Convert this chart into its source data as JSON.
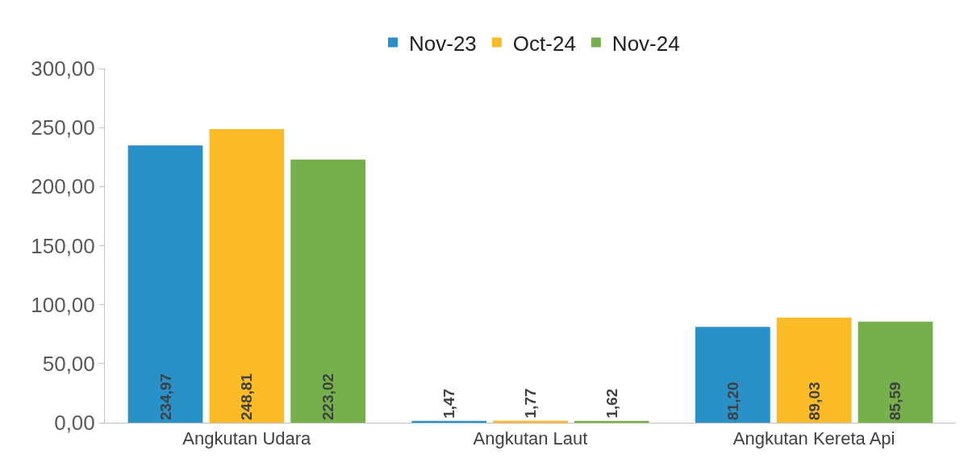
{
  "chart_data": {
    "type": "bar",
    "categories": [
      "Angkutan Udara",
      "Angkutan Laut",
      "Angkutan Kereta Api"
    ],
    "series": [
      {
        "name": "Nov-23",
        "color": "#2a90c8",
        "values": [
          234.97,
          1.47,
          81.2
        ],
        "value_labels": [
          "234,97",
          "1,47",
          "81,20"
        ]
      },
      {
        "name": "Oct-24",
        "color": "#fbbb27",
        "values": [
          248.81,
          1.77,
          89.03
        ],
        "value_labels": [
          "248,81",
          "1,77",
          "89,03"
        ]
      },
      {
        "name": "Nov-24",
        "color": "#75b04b",
        "values": [
          223.02,
          1.62,
          85.59
        ],
        "value_labels": [
          "223,02",
          "1,62",
          "85,59"
        ]
      }
    ],
    "ylim": [
      0,
      300
    ],
    "yticks": [
      {
        "value": 0,
        "label": "0,00"
      },
      {
        "value": 50,
        "label": "50,00"
      },
      {
        "value": 100,
        "label": "100,00"
      },
      {
        "value": 150,
        "label": "150,00"
      },
      {
        "value": 200,
        "label": "200,00"
      },
      {
        "value": 250,
        "label": "250,00"
      },
      {
        "value": 300,
        "label": "300,00"
      }
    ],
    "legend": "top"
  }
}
